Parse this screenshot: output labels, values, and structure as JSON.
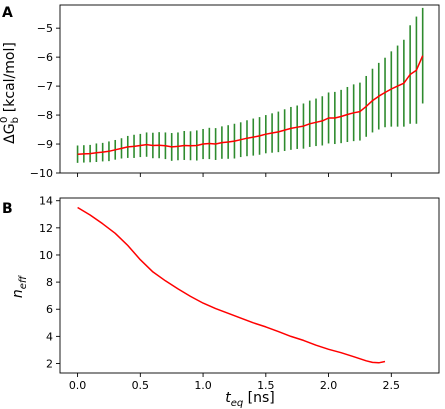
{
  "chart_data": [
    {
      "type": "line",
      "panel_label": "A",
      "xlabel": "",
      "ylabel_main": "ΔG",
      "ylabel_sub": "b",
      "ylabel_sup": "0",
      "ylabel_rest": " [kcal/mol]",
      "xlim": [
        -0.14,
        2.88
      ],
      "ylim": [
        -10,
        -4.2
      ],
      "xticks": [
        "0.0",
        "0.5",
        "1.0",
        "1.5",
        "2.0",
        "2.5"
      ],
      "xtick_values": [
        0.0,
        0.5,
        1.0,
        1.5,
        2.0,
        2.5
      ],
      "yticks": [
        "−10",
        "−9",
        "−8",
        "−7",
        "−6",
        "−5"
      ],
      "ytick_values": [
        -10,
        -9,
        -8,
        -7,
        -6,
        -5
      ],
      "xtick_labels_shown": false,
      "grid": false,
      "series": [
        {
          "line_color": "#ff0000",
          "error_color": "#2e8b2e",
          "x": [
            0.0,
            0.05,
            0.1,
            0.15,
            0.2,
            0.25,
            0.3,
            0.35,
            0.4,
            0.45,
            0.5,
            0.55,
            0.6,
            0.65,
            0.7,
            0.75,
            0.8,
            0.85,
            0.9,
            0.95,
            1.0,
            1.05,
            1.1,
            1.15,
            1.2,
            1.25,
            1.3,
            1.35,
            1.4,
            1.45,
            1.5,
            1.55,
            1.6,
            1.65,
            1.7,
            1.75,
            1.8,
            1.85,
            1.9,
            1.95,
            2.0,
            2.05,
            2.1,
            2.15,
            2.2,
            2.25,
            2.3,
            2.35,
            2.4,
            2.45,
            2.5,
            2.55,
            2.6,
            2.65,
            2.7,
            2.75
          ],
          "y": [
            -9.35,
            -9.34,
            -9.33,
            -9.3,
            -9.28,
            -9.25,
            -9.2,
            -9.15,
            -9.1,
            -9.08,
            -9.05,
            -9.02,
            -9.05,
            -9.04,
            -9.06,
            -9.1,
            -9.08,
            -9.05,
            -9.06,
            -9.05,
            -9.0,
            -8.98,
            -9.0,
            -8.95,
            -8.93,
            -8.9,
            -8.85,
            -8.8,
            -8.76,
            -8.72,
            -8.66,
            -8.62,
            -8.58,
            -8.52,
            -8.46,
            -8.42,
            -8.38,
            -8.3,
            -8.25,
            -8.2,
            -8.1,
            -8.1,
            -8.05,
            -7.98,
            -7.92,
            -7.88,
            -7.7,
            -7.5,
            -7.35,
            -7.22,
            -7.1,
            -7.0,
            -6.9,
            -6.6,
            -6.45,
            -5.95
          ],
          "err": [
            0.3,
            0.3,
            0.3,
            0.32,
            0.32,
            0.34,
            0.34,
            0.35,
            0.38,
            0.4,
            0.4,
            0.42,
            0.44,
            0.45,
            0.46,
            0.48,
            0.48,
            0.5,
            0.5,
            0.52,
            0.52,
            0.54,
            0.55,
            0.56,
            0.58,
            0.6,
            0.6,
            0.62,
            0.64,
            0.65,
            0.66,
            0.68,
            0.7,
            0.72,
            0.74,
            0.75,
            0.78,
            0.8,
            0.82,
            0.85,
            0.88,
            0.9,
            0.92,
            0.95,
            0.98,
            1.0,
            1.05,
            1.1,
            1.15,
            1.2,
            1.3,
            1.4,
            1.5,
            1.7,
            1.85,
            1.65
          ]
        }
      ]
    },
    {
      "type": "line",
      "panel_label": "B",
      "xlabel_main": "t",
      "xlabel_sub": "eq",
      "xlabel_rest": " [ns]",
      "ylabel_main": "n",
      "ylabel_sub": "eff",
      "xlim": [
        -0.14,
        2.88
      ],
      "ylim": [
        1.3,
        14.2
      ],
      "xticks": [
        "0.0",
        "0.5",
        "1.0",
        "1.5",
        "2.0",
        "2.5"
      ],
      "xtick_values": [
        0.0,
        0.5,
        1.0,
        1.5,
        2.0,
        2.5
      ],
      "yticks": [
        "2",
        "4",
        "6",
        "8",
        "10",
        "12",
        "14"
      ],
      "ytick_values": [
        2,
        4,
        6,
        8,
        10,
        12,
        14
      ],
      "grid": false,
      "series": [
        {
          "line_color": "#ff0000",
          "x": [
            0.0,
            0.1,
            0.2,
            0.3,
            0.4,
            0.5,
            0.6,
            0.7,
            0.8,
            0.9,
            1.0,
            1.1,
            1.2,
            1.3,
            1.4,
            1.5,
            1.6,
            1.7,
            1.8,
            1.9,
            2.0,
            2.1,
            2.2,
            2.3,
            2.35,
            2.4,
            2.45
          ],
          "y": [
            13.5,
            12.95,
            12.3,
            11.6,
            10.7,
            9.65,
            8.75,
            8.1,
            7.5,
            6.95,
            6.45,
            6.05,
            5.7,
            5.35,
            5.0,
            4.7,
            4.35,
            4.0,
            3.7,
            3.35,
            3.05,
            2.8,
            2.5,
            2.2,
            2.08,
            2.05,
            2.15
          ]
        }
      ]
    }
  ]
}
